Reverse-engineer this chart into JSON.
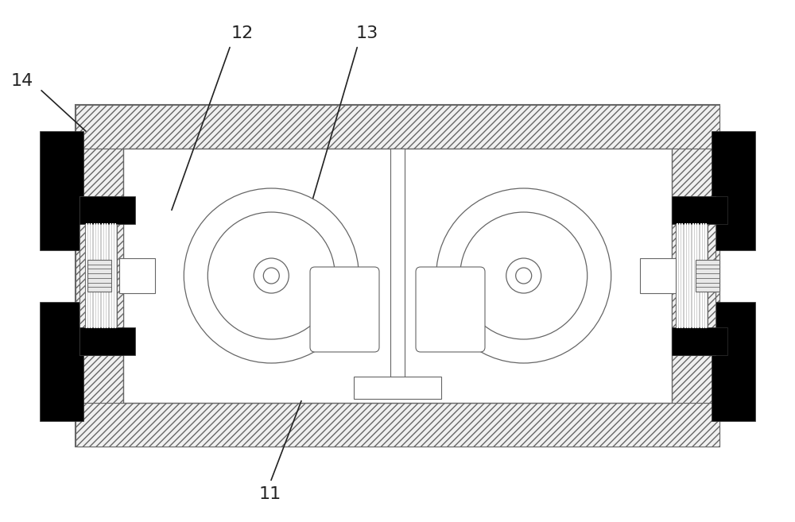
{
  "bg_color": "#ffffff",
  "line_color": "#666666",
  "dark_color": "#333333",
  "black_color": "#000000",
  "fig_width": 10.0,
  "fig_height": 6.57,
  "dpi": 100
}
